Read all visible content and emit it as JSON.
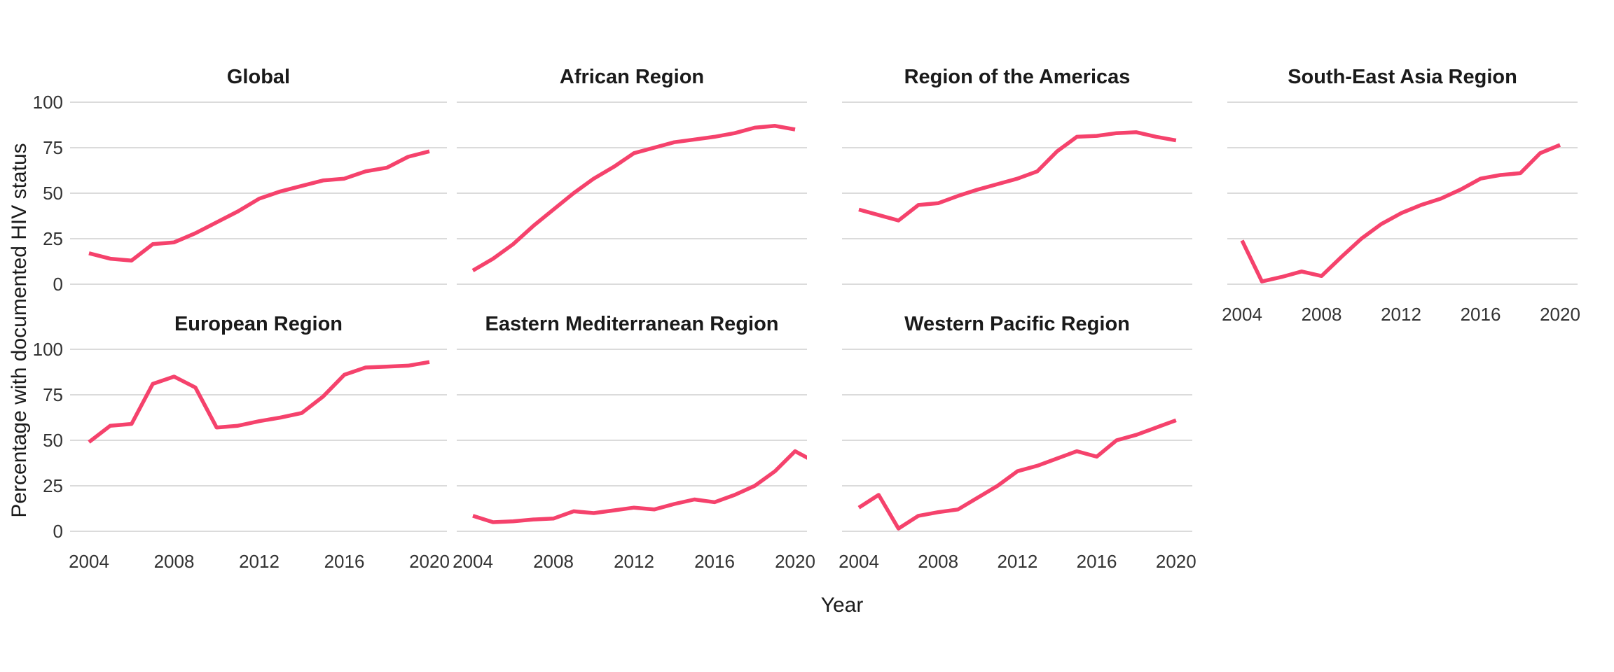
{
  "chart_data": {
    "type": "line",
    "title": "",
    "xlabel": "Year",
    "ylabel": "Percentage with documented HIV status",
    "ylim": [
      0,
      100
    ],
    "xlim": [
      2004,
      2021
    ],
    "y_ticks": [
      100,
      75,
      50,
      25,
      0
    ],
    "x_ticks": [
      2004,
      2008,
      2012,
      2016,
      2020
    ],
    "grid": "horizontal gridlines only",
    "legend": "none",
    "line_color": "#F5426C",
    "gridline_color": "#DBDBDB",
    "tick_text_color": "#333333",
    "title_text_color": "#1a1a1a",
    "facets": [
      {
        "label": "Global",
        "years": [
          2004,
          2005,
          2006,
          2007,
          2008,
          2009,
          2010,
          2011,
          2012,
          2013,
          2014,
          2015,
          2016,
          2017,
          2018,
          2019,
          2020
        ],
        "values": [
          17,
          14,
          13,
          22,
          23,
          28,
          34,
          40,
          47,
          51,
          54,
          57,
          58,
          62,
          64,
          70,
          73
        ]
      },
      {
        "label": "African Region",
        "years": [
          2004,
          2005,
          2006,
          2007,
          2008,
          2009,
          2010,
          2011,
          2012,
          2013,
          2014,
          2015,
          2016,
          2017,
          2018,
          2019,
          2020
        ],
        "values": [
          7.5,
          14,
          22,
          32,
          41,
          50,
          58,
          64.5,
          72,
          75,
          78,
          79.5,
          81,
          83,
          86,
          87,
          85
        ]
      },
      {
        "label": "Region of the Americas",
        "years": [
          2004,
          2005,
          2006,
          2007,
          2008,
          2009,
          2010,
          2011,
          2012,
          2013,
          2014,
          2015,
          2016,
          2017,
          2018,
          2019,
          2020
        ],
        "values": [
          41,
          38,
          35,
          43.5,
          44.5,
          48.5,
          52,
          55,
          58,
          62,
          73,
          81,
          81.5,
          83,
          83.5,
          81,
          79
        ]
      },
      {
        "label": "South-East Asia Region",
        "years": [
          2004,
          2005,
          2006,
          2007,
          2008,
          2009,
          2010,
          2011,
          2012,
          2013,
          2014,
          2015,
          2016,
          2017,
          2018,
          2019,
          2020
        ],
        "values": [
          24,
          1.5,
          4,
          7,
          4.5,
          15,
          25,
          33,
          39,
          43.5,
          47,
          52,
          58,
          60,
          61,
          72,
          76.5
        ]
      },
      {
        "label": "European Region",
        "years": [
          2004,
          2005,
          2006,
          2007,
          2008,
          2009,
          2010,
          2011,
          2012,
          2013,
          2014,
          2015,
          2016,
          2017,
          2018,
          2019,
          2020
        ],
        "values": [
          49,
          58,
          59,
          81,
          85,
          79,
          57,
          58,
          60.5,
          62.5,
          65,
          74,
          86,
          90,
          90.5,
          91,
          93
        ]
      },
      {
        "label": "Eastern Mediterranean Region",
        "years": [
          2004,
          2005,
          2006,
          2007,
          2008,
          2009,
          2010,
          2011,
          2012,
          2013,
          2014,
          2015,
          2016,
          2017,
          2018,
          2019,
          2020,
          2021
        ],
        "values": [
          8.5,
          5,
          5.5,
          6.5,
          7,
          11,
          10,
          11.5,
          13,
          12,
          15,
          17.5,
          16,
          20,
          25,
          33,
          44,
          38
        ]
      },
      {
        "label": "Western Pacific Region",
        "years": [
          2004,
          2005,
          2006,
          2007,
          2008,
          2009,
          2010,
          2011,
          2012,
          2013,
          2014,
          2015,
          2016,
          2017,
          2018,
          2019,
          2020
        ],
        "values": [
          13,
          20,
          1.5,
          8.5,
          10.5,
          12,
          18.5,
          25,
          33,
          36,
          40,
          44,
          41,
          50,
          53,
          57,
          61
        ]
      }
    ]
  }
}
